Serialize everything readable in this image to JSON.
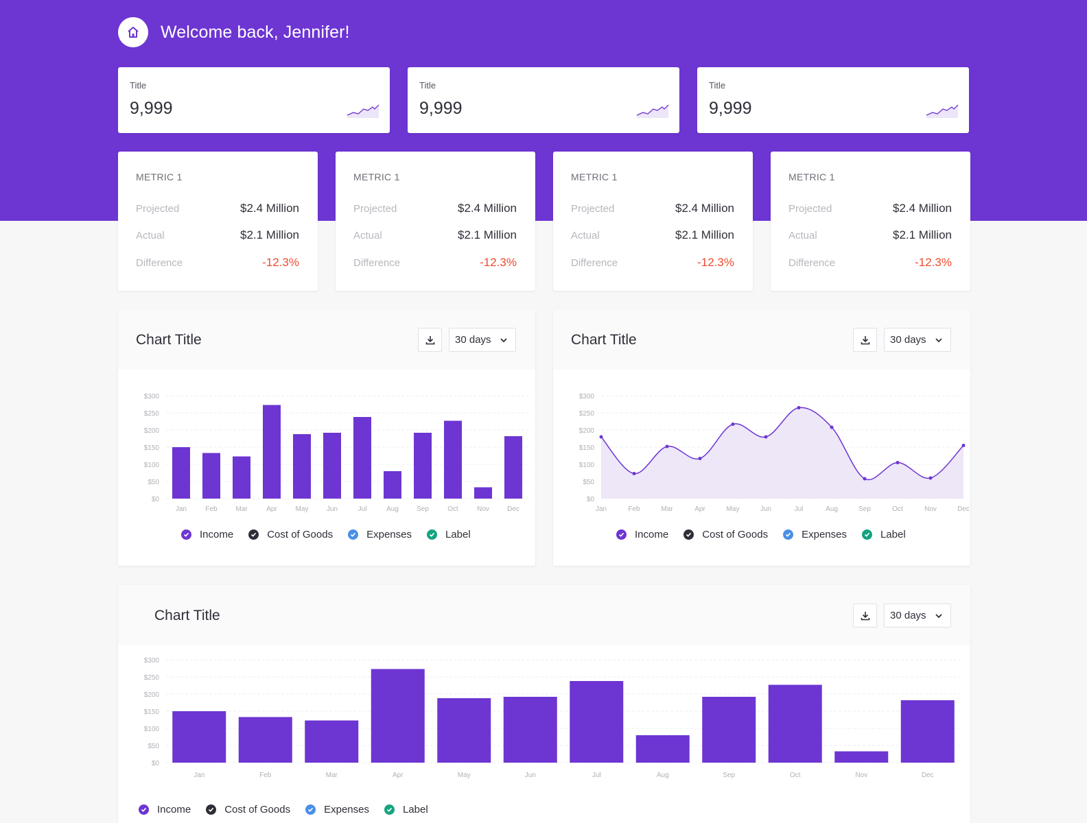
{
  "header": {
    "welcome": "Welcome back, Jennifer!",
    "home_icon": "home-icon"
  },
  "colors": {
    "brand": "#6d35d2",
    "negative": "#f04a2d",
    "income": "#6d35d2",
    "cost_of_goods": "#2e2e38",
    "expenses": "#4a8fe7",
    "label": "#14a37f"
  },
  "stat_cards": [
    {
      "title": "Title",
      "value": "9,999"
    },
    {
      "title": "Title",
      "value": "9,999"
    },
    {
      "title": "Title",
      "value": "9,999"
    }
  ],
  "metric_cards": [
    {
      "title": "METRIC 1",
      "projected_label": "Projected",
      "projected": "$2.4 Million",
      "actual_label": "Actual",
      "actual": "$2.1 Million",
      "difference_label": "Difference",
      "difference": "-12.3%"
    },
    {
      "title": "METRIC 1",
      "projected_label": "Projected",
      "projected": "$2.4 Million",
      "actual_label": "Actual",
      "actual": "$2.1 Million",
      "difference_label": "Difference",
      "difference": "-12.3%"
    },
    {
      "title": "METRIC 1",
      "projected_label": "Projected",
      "projected": "$2.4 Million",
      "actual_label": "Actual",
      "actual": "$2.1 Million",
      "difference_label": "Difference",
      "difference": "-12.3%"
    },
    {
      "title": "METRIC 1",
      "projected_label": "Projected",
      "projected": "$2.4 Million",
      "actual_label": "Actual",
      "actual": "$2.1 Million",
      "difference_label": "Difference",
      "difference": "-12.3%"
    }
  ],
  "charts": [
    {
      "title": "Chart Title",
      "range": "30 days"
    },
    {
      "title": "Chart Title",
      "range": "30 days"
    },
    {
      "title": "Chart Title",
      "range": "30 days"
    }
  ],
  "legend": [
    {
      "label": "Income",
      "color": "#6d35d2"
    },
    {
      "label": "Cost of Goods",
      "color": "#2e2e38"
    },
    {
      "label": "Expenses",
      "color": "#4a8fe7"
    },
    {
      "label": "Label",
      "color": "#14a37f"
    }
  ],
  "chart_data": [
    {
      "type": "bar",
      "categories": [
        "Jan",
        "Feb",
        "Mar",
        "Apr",
        "May",
        "Jun",
        "Jul",
        "Aug",
        "Sep",
        "Oct",
        "Nov",
        "Dec"
      ],
      "values": [
        150,
        133,
        123,
        273,
        188,
        192,
        238,
        80,
        192,
        227,
        33,
        182
      ],
      "yticks": [
        "$0",
        "$50",
        "$100",
        "$150",
        "$200",
        "$250",
        "$300"
      ],
      "ylim": [
        0,
        300
      ],
      "grid": true
    },
    {
      "type": "area",
      "categories": [
        "Jan",
        "Feb",
        "Mar",
        "Apr",
        "May",
        "Jun",
        "Jul",
        "Aug",
        "Sep",
        "Oct",
        "Nov",
        "Dec"
      ],
      "values": [
        180,
        73,
        152,
        117,
        217,
        180,
        265,
        208,
        58,
        105,
        60,
        155
      ],
      "yticks": [
        "$0",
        "$50",
        "$100",
        "$150",
        "$200",
        "$250",
        "$300"
      ],
      "ylim": [
        0,
        300
      ],
      "grid": true
    },
    {
      "type": "bar",
      "categories": [
        "Jan",
        "Feb",
        "Mar",
        "Apr",
        "May",
        "Jun",
        "Jul",
        "Aug",
        "Sep",
        "Oct",
        "Nov",
        "Dec"
      ],
      "values": [
        150,
        133,
        123,
        273,
        188,
        192,
        238,
        80,
        192,
        227,
        33,
        182
      ],
      "yticks": [
        "$0",
        "$50",
        "$100",
        "$150",
        "$200",
        "$250",
        "$300"
      ],
      "ylim": [
        0,
        300
      ],
      "grid": true
    }
  ]
}
